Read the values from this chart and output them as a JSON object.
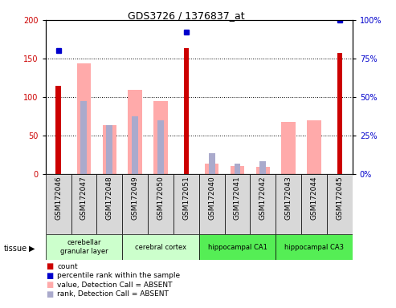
{
  "title": "GDS3726 / 1376837_at",
  "samples": [
    "GSM172046",
    "GSM172047",
    "GSM172048",
    "GSM172049",
    "GSM172050",
    "GSM172051",
    "GSM172040",
    "GSM172041",
    "GSM172042",
    "GSM172043",
    "GSM172044",
    "GSM172045"
  ],
  "count": [
    115,
    0,
    0,
    0,
    0,
    163,
    0,
    0,
    0,
    0,
    0,
    157
  ],
  "percentile_rank": [
    80,
    0,
    0,
    0,
    0,
    92,
    0,
    0,
    0,
    0,
    0,
    100
  ],
  "value_absent": [
    0,
    144,
    63,
    109,
    95,
    0,
    13,
    10,
    9,
    68,
    70,
    0
  ],
  "rank_absent": [
    0,
    95,
    63,
    75,
    70,
    0,
    27,
    13,
    17,
    0,
    0,
    0
  ],
  "color_count": "#cc0000",
  "color_rank": "#0000cc",
  "color_value_absent": "#ffaaaa",
  "color_rank_absent": "#aaaacc",
  "ylim_left": [
    0,
    200
  ],
  "ylim_right": [
    0,
    100
  ],
  "yticks_left": [
    0,
    50,
    100,
    150,
    200
  ],
  "yticks_right": [
    0,
    25,
    50,
    75,
    100
  ],
  "tissue_groups": [
    {
      "label": "cerebellar\ngranular layer",
      "start": 0,
      "end": 3,
      "color": "#ccffcc"
    },
    {
      "label": "cerebral cortex",
      "start": 3,
      "end": 6,
      "color": "#ccffcc"
    },
    {
      "label": "hippocampal CA1",
      "start": 6,
      "end": 9,
      "color": "#55ee55"
    },
    {
      "label": "hippocampal CA3",
      "start": 9,
      "end": 12,
      "color": "#55ee55"
    }
  ],
  "tissue_label": "tissue",
  "legend_items": [
    {
      "label": "count",
      "color": "#cc0000"
    },
    {
      "label": "percentile rank within the sample",
      "color": "#0000cc"
    },
    {
      "label": "value, Detection Call = ABSENT",
      "color": "#ffaaaa"
    },
    {
      "label": "rank, Detection Call = ABSENT",
      "color": "#aaaacc"
    }
  ]
}
